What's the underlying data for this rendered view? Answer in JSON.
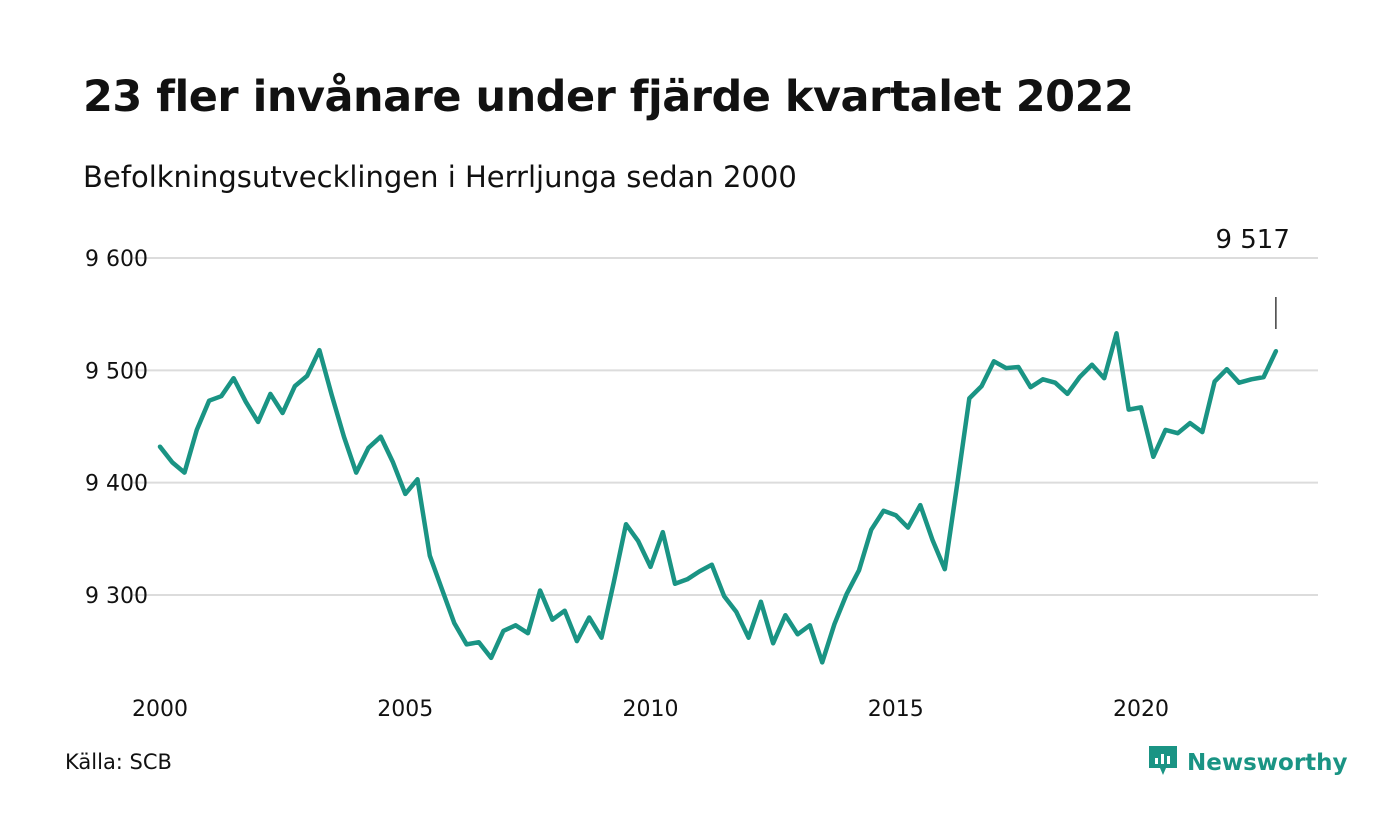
{
  "title": "23 fler invånare under fjärde kvartalet 2022",
  "subtitle": "Befolkningsutvecklingen i Herrljunga sedan 2000",
  "source": "Källa: SCB",
  "brand": {
    "name": "Newsworthy",
    "icon": "newsworthy-logo-icon"
  },
  "colors": {
    "line": "#1a9484",
    "grid": "#dcdcdc",
    "text": "#111111",
    "brand": "#1a9484"
  },
  "chart_data": {
    "type": "line",
    "title": "23 fler invånare under fjärde kvartalet 2022",
    "subtitle": "Befolkningsutvecklingen i Herrljunga sedan 2000",
    "xlabel": "",
    "ylabel": "",
    "xlim": [
      2000.0,
      2023.75
    ],
    "ylim": [
      9225,
      9625
    ],
    "x_ticks": [
      {
        "value": 2000,
        "label": "2000"
      },
      {
        "value": 2005,
        "label": "2005"
      },
      {
        "value": 2010,
        "label": "2010"
      },
      {
        "value": 2015,
        "label": "2015"
      },
      {
        "value": 2020,
        "label": "2020"
      }
    ],
    "y_ticks": [
      {
        "value": 9300,
        "label": "9 300"
      },
      {
        "value": 9400,
        "label": "9 400"
      },
      {
        "value": 9500,
        "label": "9 500"
      },
      {
        "value": 9600,
        "label": "9 600"
      }
    ],
    "grid": true,
    "last_label": {
      "x": 2022.75,
      "value": 9517,
      "text": "9 517"
    },
    "series": [
      {
        "x": [
          2000.0,
          2000.25,
          2000.5,
          2000.75,
          2001.0,
          2001.25,
          2001.5,
          2001.75,
          2002.0,
          2002.25,
          2002.5,
          2002.75,
          2003.0,
          2003.25,
          2003.5,
          2003.75,
          2004.0,
          2004.25,
          2004.5,
          2004.75,
          2005.0,
          2005.25,
          2005.5,
          2005.75,
          2006.0,
          2006.25,
          2006.5,
          2006.75,
          2007.0,
          2007.25,
          2007.5,
          2007.75,
          2008.0,
          2008.25,
          2008.5,
          2008.75,
          2009.0,
          2009.25,
          2009.5,
          2009.75,
          2010.0,
          2010.25,
          2010.5,
          2010.75,
          2011.0,
          2011.25,
          2011.5,
          2011.75,
          2012.0,
          2012.25,
          2012.5,
          2012.75,
          2013.0,
          2013.25,
          2013.5,
          2013.75,
          2014.0,
          2014.25,
          2014.5,
          2014.75,
          2015.0,
          2015.25,
          2015.5,
          2015.75,
          2016.0,
          2016.25,
          2016.5,
          2016.75,
          2017.0,
          2017.25,
          2017.5,
          2017.75,
          2018.0,
          2018.25,
          2018.5,
          2018.75,
          2019.0,
          2019.25,
          2019.5,
          2019.75,
          2020.0,
          2020.25,
          2020.5,
          2020.75,
          2021.0,
          2021.25,
          2021.5,
          2021.75,
          2022.0,
          2022.25,
          2022.5,
          2022.75
        ],
        "values": [
          9432,
          9418,
          9409,
          9447,
          9473,
          9477,
          9493,
          9472,
          9454,
          9479,
          9462,
          9486,
          9495,
          9518,
          9478,
          9441,
          9409,
          9431,
          9441,
          9418,
          9390,
          9403,
          9335,
          9305,
          9275,
          9256,
          9258,
          9244,
          9268,
          9273,
          9266,
          9304,
          9278,
          9286,
          9259,
          9280,
          9262,
          9311,
          9363,
          9348,
          9325,
          9356,
          9310,
          9314,
          9321,
          9327,
          9299,
          9285,
          9262,
          9294,
          9257,
          9282,
          9265,
          9273,
          9240,
          9274,
          9301,
          9322,
          9358,
          9375,
          9371,
          9360,
          9380,
          9349,
          9323,
          9398,
          9475,
          9486,
          9508,
          9502,
          9503,
          9485,
          9492,
          9489,
          9479,
          9494,
          9505,
          9493,
          9533,
          9465,
          9467,
          9423,
          9447,
          9444,
          9453,
          9445,
          9490,
          9501,
          9489,
          9492,
          9494,
          9517
        ]
      }
    ]
  }
}
